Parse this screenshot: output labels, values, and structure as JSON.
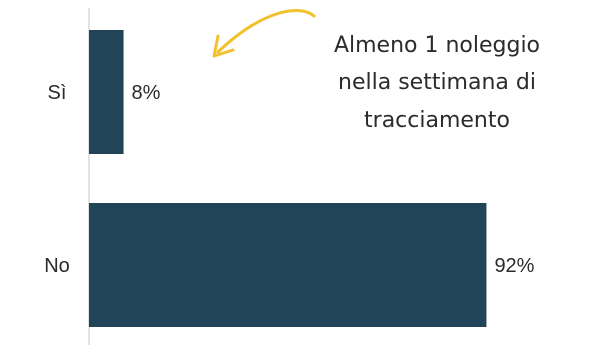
{
  "chart_data": {
    "type": "bar",
    "orientation": "horizontal",
    "title": "",
    "xlabel": "",
    "ylabel": "",
    "categories": [
      "Sì",
      "No"
    ],
    "values": [
      8,
      92
    ],
    "value_labels": [
      "8%",
      "92%"
    ],
    "xlim": [
      0,
      100
    ],
    "grid": false,
    "legend": "none",
    "bar_color": "#224459",
    "axis_color": "#d9d9d9",
    "annotation": {
      "lines": [
        "Almeno 1 noleggio",
        "nella settimana di",
        "tracciamento"
      ],
      "target_category": "Sì",
      "arrow_color": "#f2c12e"
    }
  }
}
